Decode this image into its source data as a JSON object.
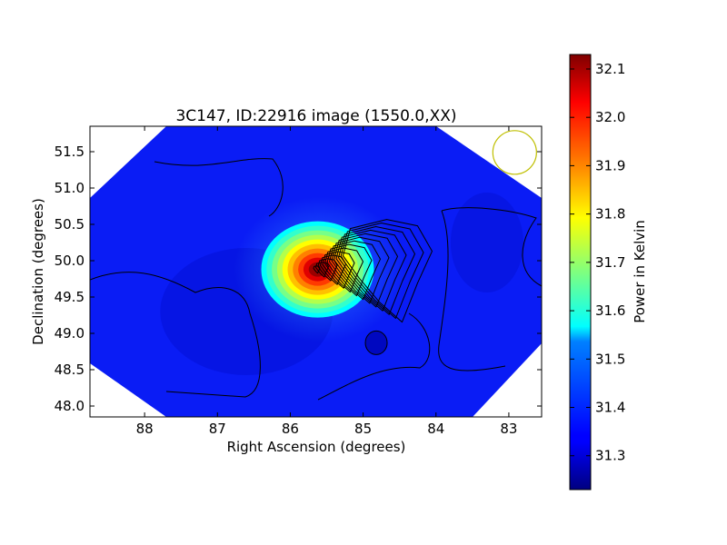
{
  "chart_data": {
    "type": "heatmap",
    "title": "3C147, ID:22916 image (1550.0,XX)",
    "xlabel": "Right Ascension (degrees)",
    "ylabel": "Declination (degrees)",
    "xlim": [
      88.75,
      82.55
    ],
    "ylim": [
      47.85,
      51.85
    ],
    "x_inverted": true,
    "xticks": [
      88,
      87,
      86,
      85,
      84,
      83
    ],
    "xtick_labels": [
      "88",
      "87",
      "86",
      "85",
      "84",
      "83"
    ],
    "yticks": [
      48.0,
      48.5,
      49.0,
      49.5,
      50.0,
      50.5,
      51.0,
      51.5
    ],
    "ytick_labels": [
      "48.0",
      "48.5",
      "49.0",
      "49.5",
      "50.0",
      "50.5",
      "51.0",
      "51.5"
    ],
    "colormap": "jet",
    "colorbar": {
      "label": "Power in Kelvin",
      "vmin": 31.23,
      "vmax": 32.13,
      "ticks": [
        31.3,
        31.4,
        31.5,
        31.6,
        31.7,
        31.8,
        31.9,
        32.0,
        32.1
      ],
      "tick_labels": [
        "31.3",
        "31.4",
        "31.5",
        "31.6",
        "31.7",
        "31.8",
        "31.9",
        "32.0",
        "32.1"
      ]
    },
    "background_level": 31.3,
    "sources": [
      {
        "ra": 85.65,
        "dec": 49.88,
        "peak": 32.13,
        "kind": "peak"
      },
      {
        "ra": 84.82,
        "dec": 48.87,
        "peak": 31.25,
        "kind": "minimum"
      }
    ],
    "beam_circle": {
      "ra": 82.92,
      "dec": 51.49,
      "color": "#bfbf00"
    },
    "contour_color": "#000000",
    "contour_count": 14
  }
}
